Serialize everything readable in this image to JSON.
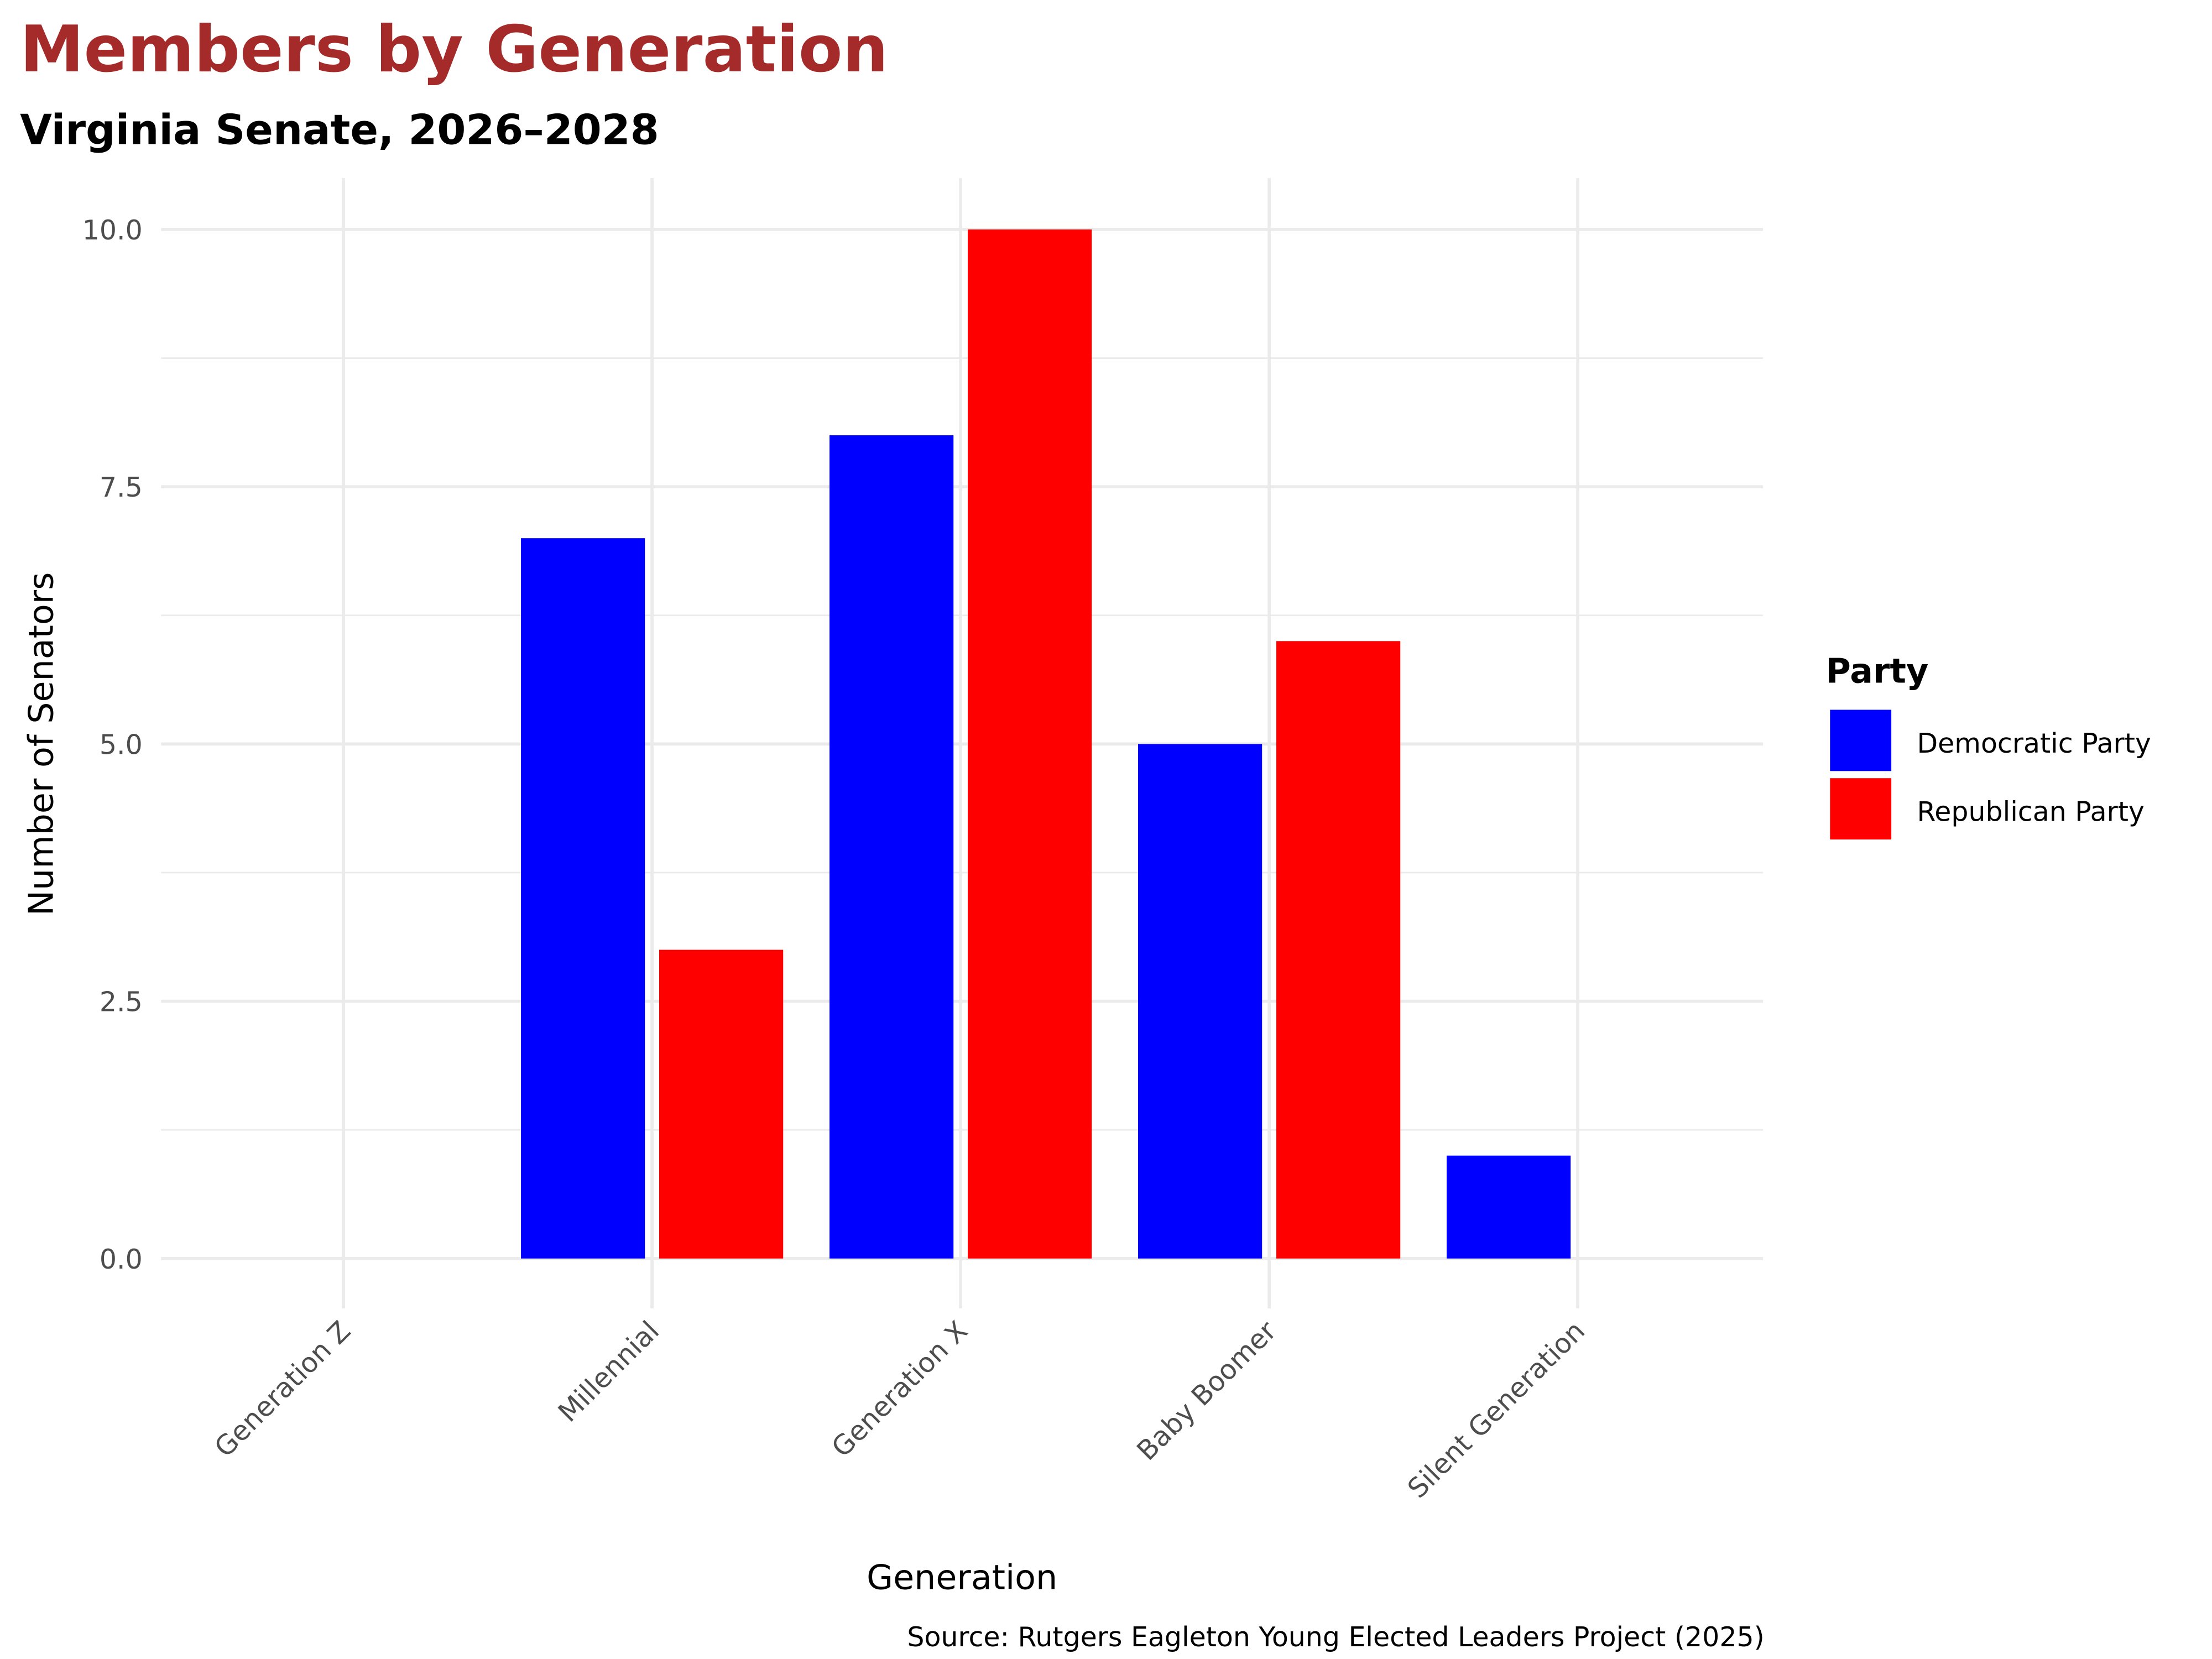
{
  "chart_data": {
    "type": "bar",
    "title": "Members by Generation",
    "subtitle": "Virginia Senate, 2026–2028",
    "xlabel": "Generation",
    "ylabel": "Number of Senators",
    "caption": "Source: Rutgers Eagleton Young Elected Leaders Project (2025)",
    "categories": [
      "Generation Z",
      "Millennial",
      "Generation X",
      "Baby Boomer",
      "Silent Generation"
    ],
    "series": [
      {
        "name": "Democratic Party",
        "color": "#0000ff",
        "values": [
          0,
          7,
          8,
          5,
          1
        ]
      },
      {
        "name": "Republican Party",
        "color": "#ff0000",
        "values": [
          0,
          3,
          10,
          6,
          0
        ]
      }
    ],
    "ylim": [
      0,
      10
    ],
    "yticks": [
      0,
      2.5,
      5,
      7.5,
      10
    ],
    "ytick_labels": [
      "0.0",
      "2.5",
      "5.0",
      "7.5",
      "10.0"
    ],
    "grid": true,
    "legend": {
      "title": "Party",
      "position": "right"
    },
    "title_color": "#a52a2a"
  }
}
